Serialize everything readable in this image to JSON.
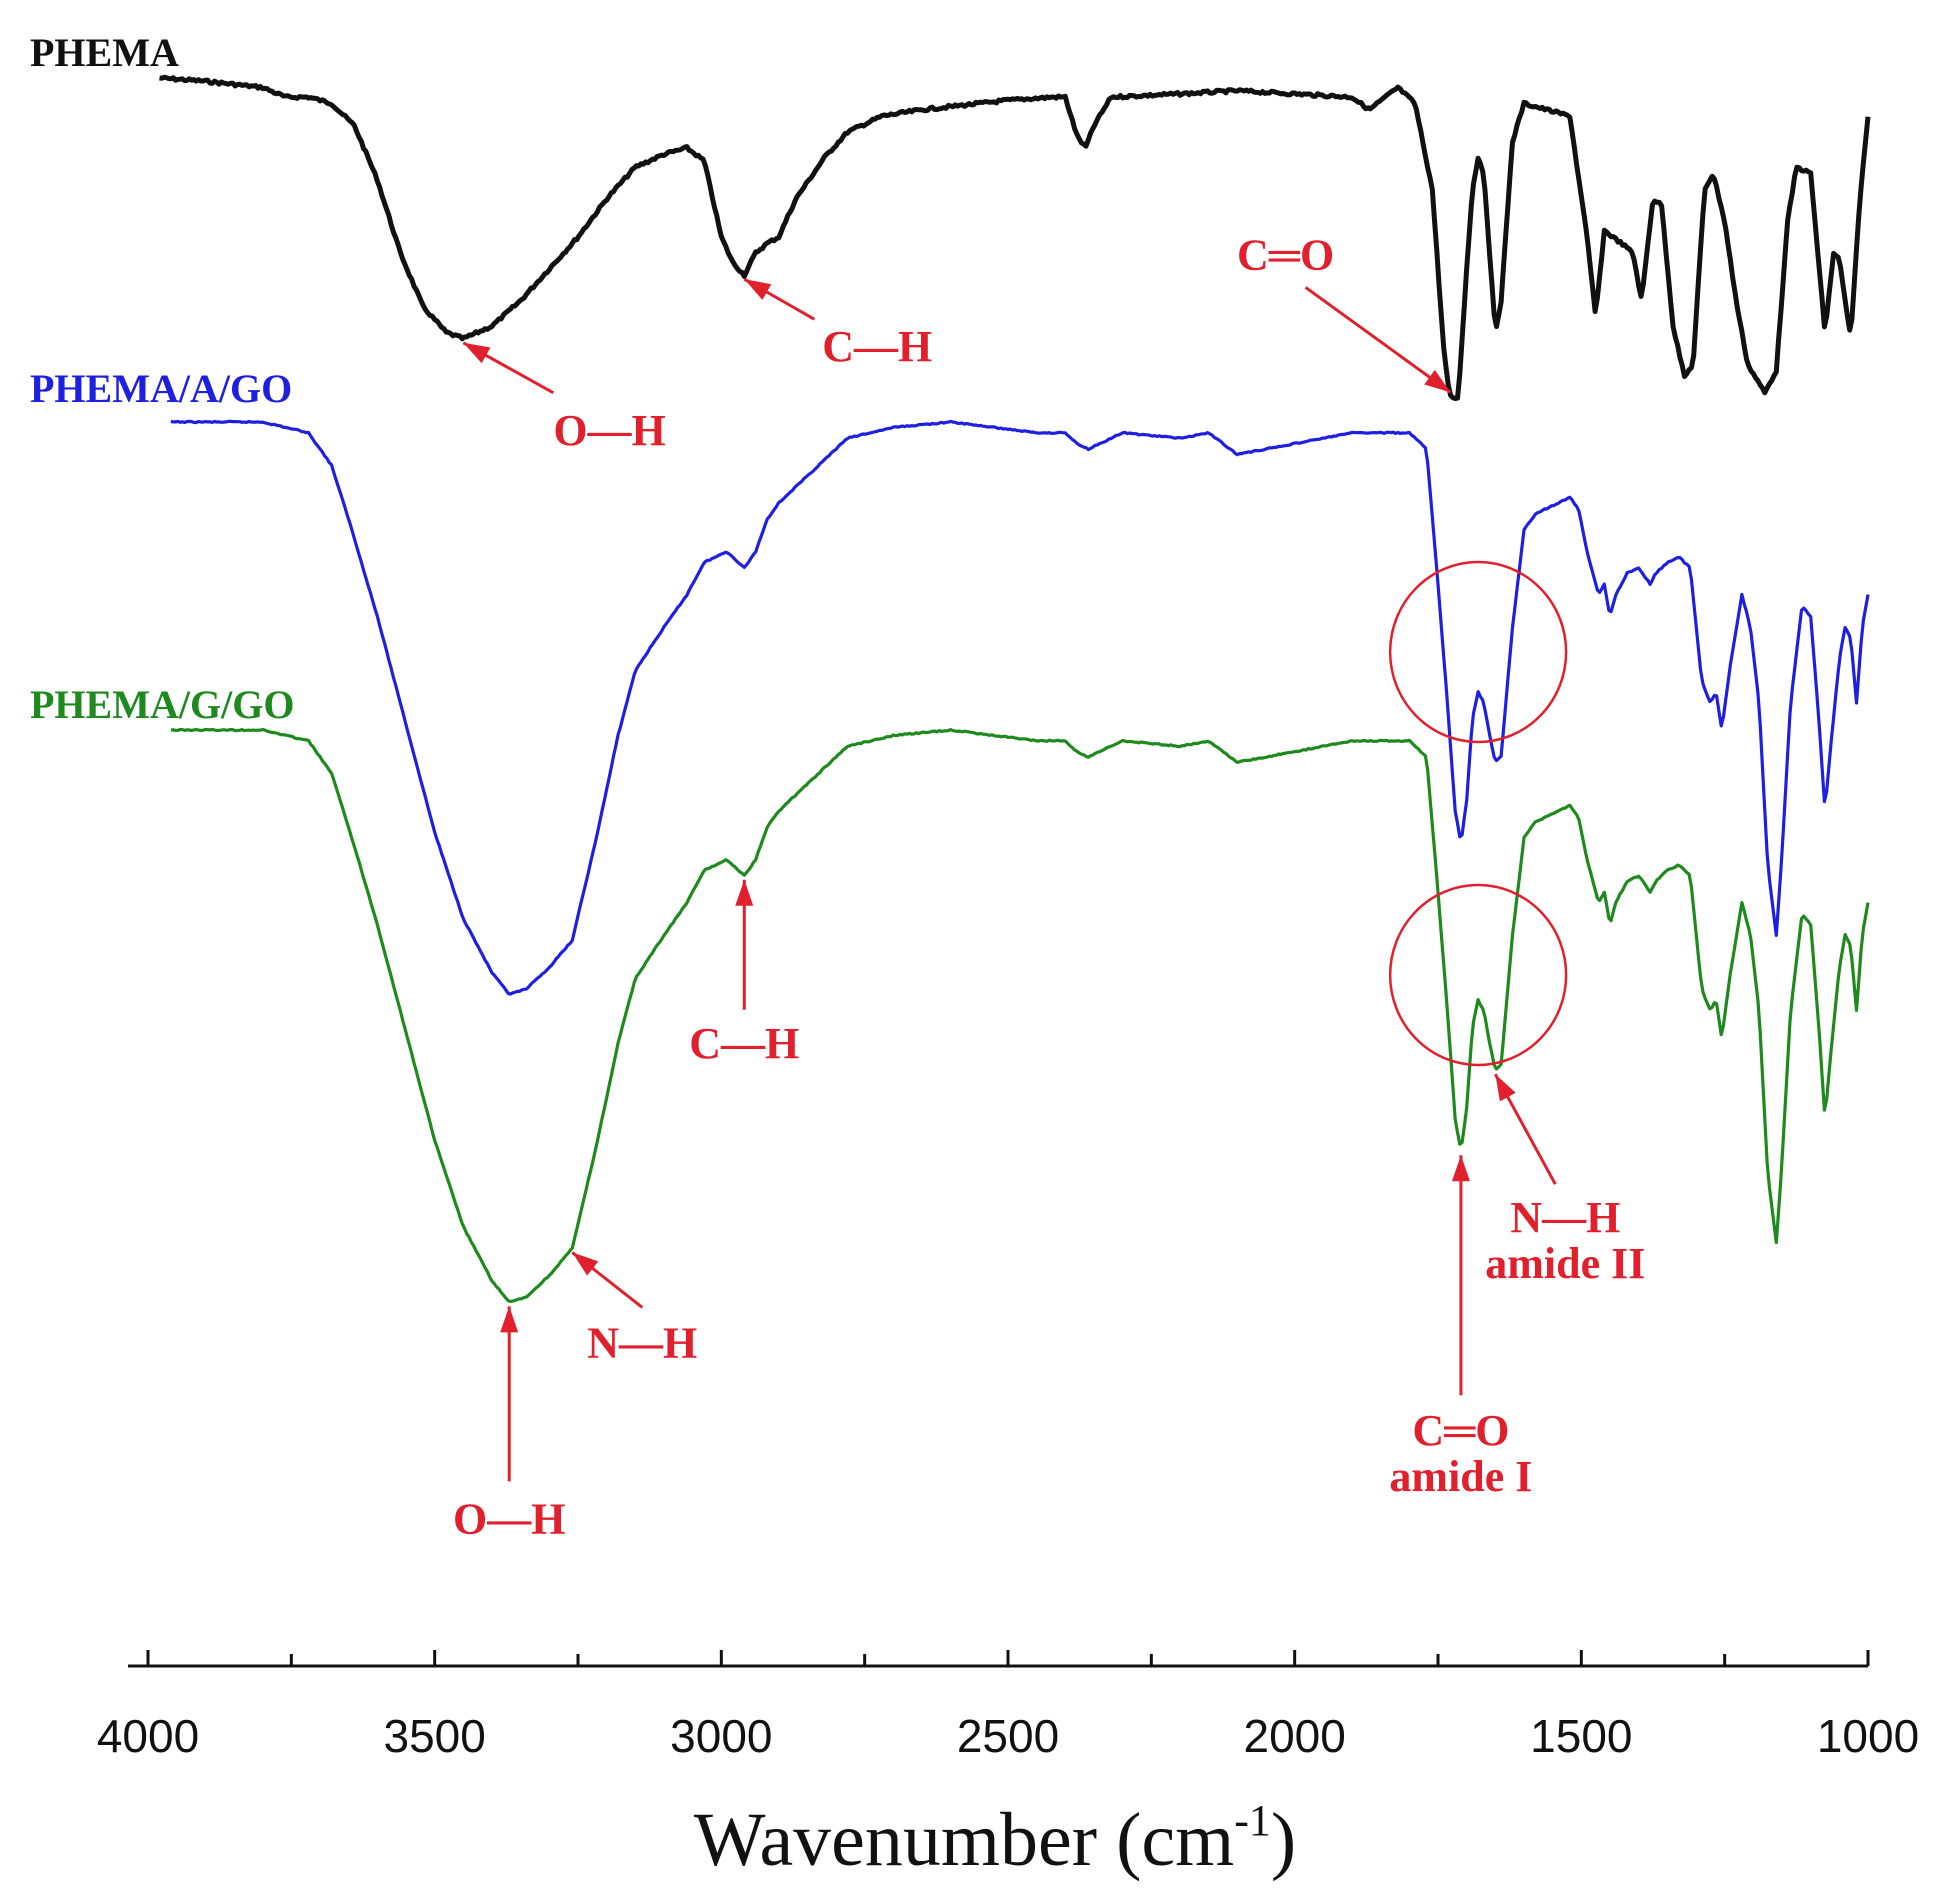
{
  "chart_data": {
    "type": "line",
    "title": "",
    "xlabel": "Wavenumber (cm-1)",
    "xlabel_main": "Wavenumber (cm",
    "xlabel_sup": "-1",
    "xlabel_close": ")",
    "ylabel": "",
    "xlim": [
      4000,
      1000
    ],
    "x_reversed": true,
    "xticks": [
      4000,
      3500,
      3000,
      2500,
      2000,
      1500,
      1000
    ],
    "tick_labels": [
      "4000",
      "3500",
      "3000",
      "2500",
      "2000",
      "1500",
      "1000"
    ],
    "y_units": "transmittance (a.u., stacked, unlabeled)",
    "grid": false,
    "series": [
      {
        "name": "PHEMA",
        "color": "#111111",
        "points": [
          [
            3980,
            0.0
          ],
          [
            3900,
            0.01
          ],
          [
            3850,
            0.02
          ],
          [
            3800,
            0.03
          ],
          [
            3760,
            0.06
          ],
          [
            3720,
            0.06
          ],
          [
            3680,
            0.08
          ],
          [
            3640,
            0.15
          ],
          [
            3600,
            0.32
          ],
          [
            3560,
            0.55
          ],
          [
            3520,
            0.72
          ],
          [
            3480,
            0.8
          ],
          [
            3450,
            0.82
          ],
          [
            3400,
            0.78
          ],
          [
            3350,
            0.7
          ],
          [
            3300,
            0.6
          ],
          [
            3250,
            0.5
          ],
          [
            3200,
            0.38
          ],
          [
            3150,
            0.28
          ],
          [
            3100,
            0.24
          ],
          [
            3060,
            0.22
          ],
          [
            3030,
            0.26
          ],
          [
            3000,
            0.5
          ],
          [
            2980,
            0.58
          ],
          [
            2960,
            0.62
          ],
          [
            2940,
            0.55
          ],
          [
            2920,
            0.52
          ],
          [
            2900,
            0.5
          ],
          [
            2870,
            0.38
          ],
          [
            2820,
            0.25
          ],
          [
            2780,
            0.17
          ],
          [
            2720,
            0.12
          ],
          [
            2650,
            0.1
          ],
          [
            2500,
            0.07
          ],
          [
            2420,
            0.06
          ],
          [
            2400,
            0.06
          ],
          [
            2380,
            0.18
          ],
          [
            2365,
            0.22
          ],
          [
            2350,
            0.15
          ],
          [
            2320,
            0.06
          ],
          [
            2200,
            0.05
          ],
          [
            2100,
            0.04
          ],
          [
            2000,
            0.05
          ],
          [
            1900,
            0.06
          ],
          [
            1870,
            0.1
          ],
          [
            1820,
            0.03
          ],
          [
            1790,
            0.08
          ],
          [
            1760,
            0.35
          ],
          [
            1740,
            0.85
          ],
          [
            1730,
            1.0
          ],
          [
            1715,
            1.01
          ],
          [
            1700,
            0.6
          ],
          [
            1690,
            0.35
          ],
          [
            1680,
            0.25
          ],
          [
            1670,
            0.3
          ],
          [
            1660,
            0.55
          ],
          [
            1650,
            0.8
          ],
          [
            1640,
            0.7
          ],
          [
            1620,
            0.2
          ],
          [
            1600,
            0.08
          ],
          [
            1560,
            0.1
          ],
          [
            1520,
            0.12
          ],
          [
            1490,
            0.5
          ],
          [
            1475,
            0.75
          ],
          [
            1460,
            0.48
          ],
          [
            1430,
            0.52
          ],
          [
            1410,
            0.55
          ],
          [
            1395,
            0.7
          ],
          [
            1375,
            0.38
          ],
          [
            1360,
            0.4
          ],
          [
            1340,
            0.78
          ],
          [
            1320,
            0.94
          ],
          [
            1305,
            0.9
          ],
          [
            1295,
            0.62
          ],
          [
            1285,
            0.35
          ],
          [
            1270,
            0.3
          ],
          [
            1250,
            0.45
          ],
          [
            1230,
            0.7
          ],
          [
            1210,
            0.9
          ],
          [
            1180,
            0.99
          ],
          [
            1160,
            0.92
          ],
          [
            1140,
            0.45
          ],
          [
            1125,
            0.28
          ],
          [
            1100,
            0.3
          ],
          [
            1090,
            0.5
          ],
          [
            1075,
            0.8
          ],
          [
            1060,
            0.55
          ],
          [
            1050,
            0.57
          ],
          [
            1040,
            0.7
          ],
          [
            1030,
            0.82
          ],
          [
            1015,
            0.4
          ],
          [
            1000,
            0.12
          ]
        ]
      },
      {
        "name": "PHEMA/A/GO",
        "color": "#1f1fe0",
        "points": [
          [
            3960,
            0.0
          ],
          [
            3800,
            0.0
          ],
          [
            3720,
            0.02
          ],
          [
            3680,
            0.08
          ],
          [
            3650,
            0.18
          ],
          [
            3600,
            0.36
          ],
          [
            3550,
            0.56
          ],
          [
            3500,
            0.76
          ],
          [
            3450,
            0.92
          ],
          [
            3400,
            1.02
          ],
          [
            3370,
            1.06
          ],
          [
            3340,
            1.05
          ],
          [
            3300,
            1.01
          ],
          [
            3260,
            0.96
          ],
          [
            3220,
            0.78
          ],
          [
            3180,
            0.58
          ],
          [
            3150,
            0.46
          ],
          [
            3100,
            0.38
          ],
          [
            3060,
            0.32
          ],
          [
            3030,
            0.26
          ],
          [
            3010,
            0.25
          ],
          [
            2990,
            0.24
          ],
          [
            2960,
            0.27
          ],
          [
            2940,
            0.24
          ],
          [
            2920,
            0.18
          ],
          [
            2900,
            0.15
          ],
          [
            2850,
            0.1
          ],
          [
            2780,
            0.03
          ],
          [
            2700,
            0.01
          ],
          [
            2600,
            0.0
          ],
          [
            2450,
            0.02
          ],
          [
            2400,
            0.02
          ],
          [
            2380,
            0.04
          ],
          [
            2360,
            0.05
          ],
          [
            2300,
            0.02
          ],
          [
            2200,
            0.03
          ],
          [
            2150,
            0.02
          ],
          [
            2100,
            0.06
          ],
          [
            2000,
            0.04
          ],
          [
            1900,
            0.02
          ],
          [
            1800,
            0.02
          ],
          [
            1770,
            0.05
          ],
          [
            1750,
            0.3
          ],
          [
            1735,
            0.5
          ],
          [
            1720,
            0.72
          ],
          [
            1710,
            0.78
          ],
          [
            1700,
            0.7
          ],
          [
            1690,
            0.55
          ],
          [
            1680,
            0.5
          ],
          [
            1670,
            0.52
          ],
          [
            1660,
            0.58
          ],
          [
            1650,
            0.63
          ],
          [
            1640,
            0.62
          ],
          [
            1620,
            0.38
          ],
          [
            1600,
            0.2
          ],
          [
            1580,
            0.17
          ],
          [
            1560,
            0.16
          ],
          [
            1520,
            0.14
          ],
          [
            1505,
            0.16
          ],
          [
            1490,
            0.24
          ],
          [
            1470,
            0.32
          ],
          [
            1460,
            0.3
          ],
          [
            1450,
            0.36
          ],
          [
            1440,
            0.32
          ],
          [
            1420,
            0.28
          ],
          [
            1400,
            0.27
          ],
          [
            1380,
            0.3
          ],
          [
            1370,
            0.28
          ],
          [
            1350,
            0.26
          ],
          [
            1330,
            0.25
          ],
          [
            1310,
            0.27
          ],
          [
            1290,
            0.48
          ],
          [
            1275,
            0.52
          ],
          [
            1265,
            0.5
          ],
          [
            1255,
            0.57
          ],
          [
            1240,
            0.45
          ],
          [
            1220,
            0.32
          ],
          [
            1205,
            0.38
          ],
          [
            1190,
            0.52
          ],
          [
            1175,
            0.82
          ],
          [
            1160,
            0.95
          ],
          [
            1150,
            0.8
          ],
          [
            1135,
            0.52
          ],
          [
            1115,
            0.34
          ],
          [
            1100,
            0.36
          ],
          [
            1085,
            0.56
          ],
          [
            1075,
            0.72
          ],
          [
            1065,
            0.6
          ],
          [
            1050,
            0.44
          ],
          [
            1040,
            0.38
          ],
          [
            1030,
            0.4
          ],
          [
            1020,
            0.52
          ],
          [
            1010,
            0.38
          ],
          [
            1000,
            0.32
          ]
        ]
      },
      {
        "name": "PHEMA/G/GO",
        "color": "#1e8a1e",
        "points": [
          [
            3960,
            0.0
          ],
          [
            3800,
            0.0
          ],
          [
            3720,
            0.02
          ],
          [
            3680,
            0.08
          ],
          [
            3650,
            0.18
          ],
          [
            3600,
            0.36
          ],
          [
            3550,
            0.56
          ],
          [
            3500,
            0.76
          ],
          [
            3450,
            0.92
          ],
          [
            3400,
            1.02
          ],
          [
            3370,
            1.06
          ],
          [
            3340,
            1.05
          ],
          [
            3300,
            1.01
          ],
          [
            3260,
            0.96
          ],
          [
            3220,
            0.78
          ],
          [
            3180,
            0.58
          ],
          [
            3150,
            0.46
          ],
          [
            3100,
            0.38
          ],
          [
            3060,
            0.32
          ],
          [
            3030,
            0.26
          ],
          [
            3010,
            0.25
          ],
          [
            2990,
            0.24
          ],
          [
            2960,
            0.27
          ],
          [
            2940,
            0.24
          ],
          [
            2920,
            0.18
          ],
          [
            2900,
            0.15
          ],
          [
            2850,
            0.1
          ],
          [
            2780,
            0.03
          ],
          [
            2700,
            0.01
          ],
          [
            2600,
            0.0
          ],
          [
            2450,
            0.02
          ],
          [
            2400,
            0.02
          ],
          [
            2380,
            0.04
          ],
          [
            2360,
            0.05
          ],
          [
            2300,
            0.02
          ],
          [
            2200,
            0.03
          ],
          [
            2150,
            0.02
          ],
          [
            2100,
            0.06
          ],
          [
            2000,
            0.04
          ],
          [
            1900,
            0.02
          ],
          [
            1800,
            0.02
          ],
          [
            1770,
            0.05
          ],
          [
            1750,
            0.3
          ],
          [
            1735,
            0.5
          ],
          [
            1720,
            0.72
          ],
          [
            1710,
            0.78
          ],
          [
            1700,
            0.7
          ],
          [
            1690,
            0.55
          ],
          [
            1680,
            0.5
          ],
          [
            1670,
            0.52
          ],
          [
            1660,
            0.58
          ],
          [
            1650,
            0.63
          ],
          [
            1640,
            0.62
          ],
          [
            1620,
            0.38
          ],
          [
            1600,
            0.2
          ],
          [
            1580,
            0.17
          ],
          [
            1560,
            0.16
          ],
          [
            1520,
            0.14
          ],
          [
            1505,
            0.16
          ],
          [
            1490,
            0.24
          ],
          [
            1470,
            0.32
          ],
          [
            1460,
            0.3
          ],
          [
            1450,
            0.36
          ],
          [
            1440,
            0.32
          ],
          [
            1420,
            0.28
          ],
          [
            1400,
            0.27
          ],
          [
            1380,
            0.3
          ],
          [
            1370,
            0.28
          ],
          [
            1350,
            0.26
          ],
          [
            1330,
            0.25
          ],
          [
            1310,
            0.27
          ],
          [
            1290,
            0.48
          ],
          [
            1275,
            0.52
          ],
          [
            1265,
            0.5
          ],
          [
            1255,
            0.57
          ],
          [
            1240,
            0.45
          ],
          [
            1220,
            0.32
          ],
          [
            1205,
            0.38
          ],
          [
            1190,
            0.52
          ],
          [
            1175,
            0.82
          ],
          [
            1160,
            0.95
          ],
          [
            1150,
            0.8
          ],
          [
            1135,
            0.52
          ],
          [
            1115,
            0.34
          ],
          [
            1100,
            0.36
          ],
          [
            1085,
            0.56
          ],
          [
            1075,
            0.72
          ],
          [
            1065,
            0.6
          ],
          [
            1050,
            0.44
          ],
          [
            1040,
            0.38
          ],
          [
            1030,
            0.4
          ],
          [
            1020,
            0.52
          ],
          [
            1010,
            0.38
          ],
          [
            1000,
            0.32
          ]
        ]
      }
    ],
    "annotations": [
      {
        "series": "PHEMA",
        "label": "O—H",
        "x": 3450
      },
      {
        "series": "PHEMA",
        "label": "C—H",
        "x": 2960
      },
      {
        "series": "PHEMA",
        "label": "C═O",
        "x": 1728
      },
      {
        "series": "PHEMA/G/GO",
        "label": "O—H",
        "x": 3370
      },
      {
        "series": "PHEMA/G/GO",
        "label": "N—H",
        "x": 3260
      },
      {
        "series": "PHEMA/G/GO",
        "label": "C—H",
        "x": 2960
      },
      {
        "series": "PHEMA/G/GO",
        "label": "C═O",
        "sublabel": "amide I",
        "x": 1710
      },
      {
        "series": "PHEMA/G/GO",
        "label": "N—H",
        "sublabel": "amide II",
        "x": 1650
      }
    ],
    "highlight_circles": [
      {
        "series": "PHEMA/A/GO",
        "x_center": 1680
      },
      {
        "series": "PHEMA/G/GO",
        "x_center": 1680
      }
    ]
  }
}
